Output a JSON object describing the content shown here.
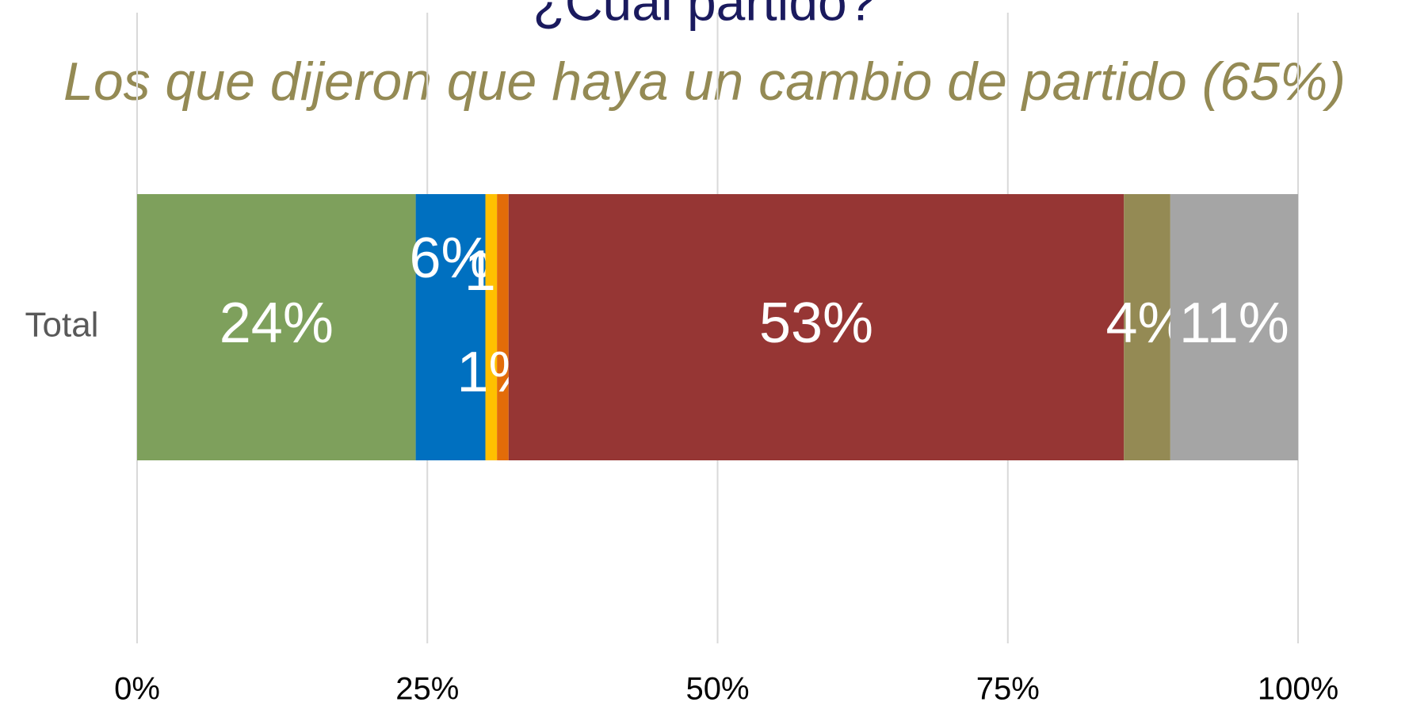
{
  "chart_data": {
    "type": "stacked_bar_horizontal",
    "title": "¿Cuál partido?",
    "subtitle": "Los que dijeron que haya un cambio de partido (65%)",
    "categories": [
      "Total"
    ],
    "series": [
      {
        "color": "#7ea05c",
        "values": [
          24
        ],
        "value_labels": [
          "24%"
        ]
      },
      {
        "color": "#0070c0",
        "values": [
          6
        ],
        "value_labels": [
          "6%"
        ]
      },
      {
        "color": "#ffc000",
        "values": [
          1
        ],
        "value_labels": [
          "1%"
        ]
      },
      {
        "color": "#e36c09",
        "values": [
          1
        ],
        "value_labels": [
          "1%"
        ]
      },
      {
        "color": "#963634",
        "values": [
          53
        ],
        "value_labels": [
          "53%"
        ]
      },
      {
        "color": "#948a54",
        "values": [
          4
        ],
        "value_labels": [
          "4%"
        ]
      },
      {
        "color": "#a5a5a5",
        "values": [
          11
        ],
        "value_labels": [
          "11%"
        ]
      }
    ],
    "xlim": [
      0,
      100
    ],
    "xticks": [
      {
        "value": 0,
        "label": "0%"
      },
      {
        "value": 25,
        "label": "25%"
      },
      {
        "value": 50,
        "label": "50%"
      },
      {
        "value": 75,
        "label": "75%"
      },
      {
        "value": 100,
        "label": "100%"
      }
    ],
    "grid": true
  }
}
